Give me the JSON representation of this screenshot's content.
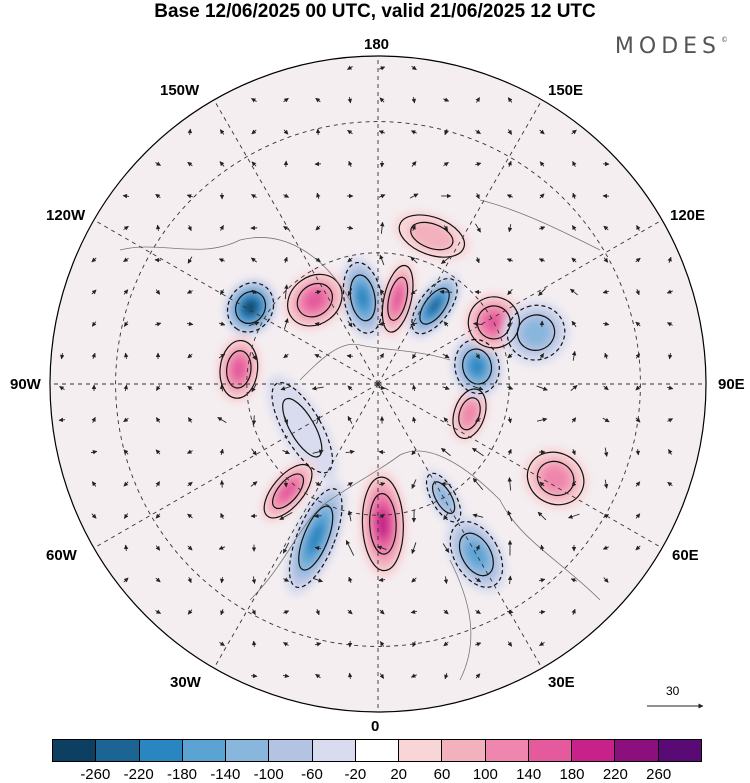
{
  "title": "Base 12/06/2025 00 UTC, valid 21/06/2025 12 UTC",
  "brand": "MODES",
  "brand_mark": "©",
  "longitude_labels": {
    "top": "180",
    "bottom": "0",
    "left": "90W",
    "right": "90E",
    "nw": "150W",
    "ne": "150E",
    "wnw": "120W",
    "ene": "120E",
    "wsw": "60W",
    "ese": "60E",
    "sw": "30W",
    "se": "30E"
  },
  "reference_vector": "30",
  "colorbar": {
    "colors": [
      "#0d3f63",
      "#1b6494",
      "#2a86c1",
      "#5aa3d3",
      "#89b6dd",
      "#b3c3e2",
      "#d9dcee",
      "#ffffff",
      "#f8d6d8",
      "#f3b0bd",
      "#ef86ad",
      "#e45a9d",
      "#c6228a",
      "#8c0f7e",
      "#5a0a75"
    ],
    "ticks": [
      "-260",
      "-220",
      "-180",
      "-140",
      "-100",
      "-60",
      "-20",
      "20",
      "60",
      "100",
      "140",
      "180",
      "220",
      "260"
    ]
  },
  "anomalies": [
    {
      "lat": 70,
      "lon": -170,
      "v": -180,
      "rx": 22,
      "ry": 42
    },
    {
      "lat": 66,
      "lon": -143,
      "v": 150,
      "rx": 34,
      "ry": 28
    },
    {
      "lat": 56,
      "lon": -121,
      "v": -260,
      "rx": 30,
      "ry": 26
    },
    {
      "lat": 58,
      "lon": -96,
      "v": 160,
      "rx": 34,
      "ry": 22
    },
    {
      "lat": 70,
      "lon": -60,
      "v": -40,
      "rx": 60,
      "ry": 22
    },
    {
      "lat": 58,
      "lon": -40,
      "v": 150,
      "rx": 18,
      "ry": 38
    },
    {
      "lat": 52,
      "lon": -22,
      "v": -200,
      "rx": 22,
      "ry": 62
    },
    {
      "lat": 58,
      "lon": 2,
      "v": 170,
      "rx": 24,
      "ry": 55
    },
    {
      "lat": 45,
      "lon": 30,
      "v": -150,
      "rx": 26,
      "ry": 42
    },
    {
      "lat": 60,
      "lon": 30,
      "v": -100,
      "rx": 14,
      "ry": 32
    },
    {
      "lat": 44,
      "lon": 62,
      "v": 100,
      "rx": 30,
      "ry": 34
    },
    {
      "lat": 68,
      "lon": 72,
      "v": 110,
      "rx": 30,
      "ry": 18
    },
    {
      "lat": 67,
      "lon": 100,
      "v": -190,
      "rx": 32,
      "ry": 26
    },
    {
      "lat": 60,
      "lon": 118,
      "v": 140,
      "rx": 30,
      "ry": 30
    },
    {
      "lat": 52,
      "lon": 108,
      "v": -120,
      "rx": 32,
      "ry": 34
    },
    {
      "lat": 68,
      "lon": 144,
      "v": -230,
      "rx": 18,
      "ry": 38
    },
    {
      "lat": 70,
      "lon": 167,
      "v": 160,
      "rx": 16,
      "ry": 40
    },
    {
      "lat": 54,
      "lon": 160,
      "v": 60,
      "rx": 40,
      "ry": 22
    }
  ]
}
